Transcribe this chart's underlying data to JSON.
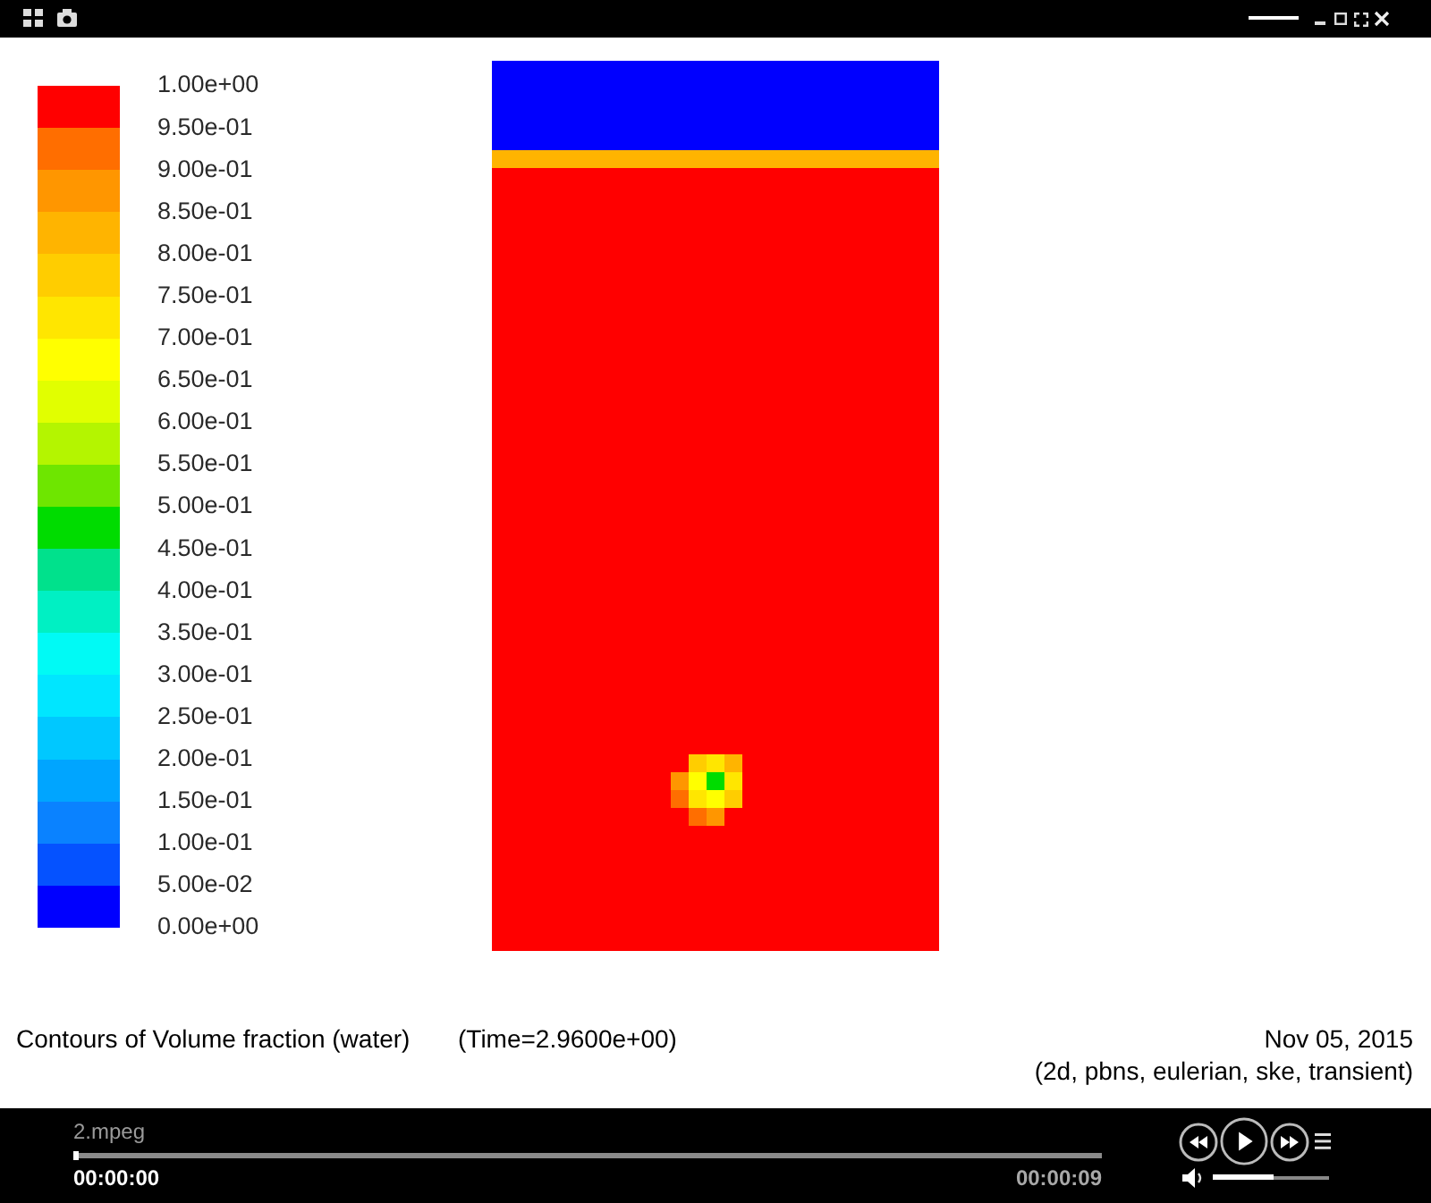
{
  "chart_data": {
    "type": "heatmap",
    "title": "Contours of Volume fraction (water)",
    "subtitle": "(Time=2.9600e+00)",
    "annotations": [
      "Nov 05, 2015",
      "(2d, pbns, eulerian, ske, transient)",
      "2.mpeg",
      "00:00:00",
      "00:00:09"
    ],
    "categories": [
      null,
      null,
      null,
      null,
      null,
      null,
      null,
      null,
      null,
      null,
      null,
      null,
      null,
      null,
      null,
      null,
      null,
      null,
      null,
      null,
      null,
      null,
      null,
      null,
      null
    ],
    "y_categories": [
      null,
      null,
      null,
      null,
      null,
      null,
      null,
      null,
      null,
      null,
      null,
      null,
      null,
      null,
      null,
      null,
      null,
      null,
      null,
      null,
      null,
      null,
      null,
      null,
      null,
      null,
      null,
      null,
      null,
      null,
      null,
      null,
      null,
      null,
      null,
      null,
      null,
      null,
      null,
      null,
      null,
      null,
      null,
      null,
      null,
      null,
      null,
      null,
      null,
      null
    ],
    "clim": [
      0,
      1
    ],
    "cticks": [
      {
        "value": 0,
        "label": "0.00e+00"
      },
      {
        "value": 0.05,
        "label": "5.00e-02"
      },
      {
        "value": 0.1,
        "label": "1.00e-01"
      },
      {
        "value": 0.15,
        "label": "1.50e-01"
      },
      {
        "value": 0.2,
        "label": "2.00e-01"
      },
      {
        "value": 0.25,
        "label": "2.50e-01"
      },
      {
        "value": 0.3,
        "label": "3.00e-01"
      },
      {
        "value": 0.35,
        "label": "3.50e-01"
      },
      {
        "value": 0.4,
        "label": "4.00e-01"
      },
      {
        "value": 0.45,
        "label": "4.50e-01"
      },
      {
        "value": 0.5,
        "label": "5.00e-01"
      },
      {
        "value": 0.55,
        "label": "5.50e-01"
      },
      {
        "value": 0.6,
        "label": "6.00e-01"
      },
      {
        "value": 0.65,
        "label": "6.50e-01"
      },
      {
        "value": 0.7,
        "label": "7.00e-01"
      },
      {
        "value": 0.75,
        "label": "7.50e-01"
      },
      {
        "value": 0.8,
        "label": "8.00e-01"
      },
      {
        "value": 0.85,
        "label": "8.50e-01"
      },
      {
        "value": 0.9,
        "label": "9.00e-01"
      },
      {
        "value": 0.95,
        "label": "9.50e-01"
      },
      {
        "value": 1,
        "label": "1.00e+00"
      }
    ],
    "cells": [
      [
        0,
        0,
        0,
        0,
        0,
        0,
        0,
        0,
        0,
        0,
        0,
        0,
        0,
        0,
        0,
        0,
        0,
        0,
        0,
        0,
        0,
        0,
        0,
        0,
        0
      ],
      [
        0,
        0,
        0,
        0,
        0,
        0,
        0,
        0,
        0,
        0,
        0,
        0,
        0,
        0,
        0,
        0,
        0,
        0,
        0,
        0,
        0,
        0,
        0,
        0,
        0
      ],
      [
        0,
        0,
        0,
        0,
        0,
        0,
        0,
        0,
        0,
        0,
        0,
        0,
        0,
        0,
        0,
        0,
        0,
        0,
        0,
        0,
        0,
        0,
        0,
        0,
        0
      ],
      [
        0,
        0,
        0,
        0,
        0,
        0,
        0,
        0,
        0,
        0,
        0,
        0,
        0,
        0,
        0,
        0,
        0,
        0,
        0,
        0,
        0,
        0,
        0,
        0,
        0
      ],
      [
        0,
        0,
        0,
        0,
        0,
        0,
        0,
        0,
        0,
        0,
        0,
        0,
        0,
        0,
        0,
        0,
        0,
        0,
        0,
        0,
        0,
        0,
        0,
        0,
        0
      ],
      [
        0.84,
        0.84,
        0.84,
        0.84,
        0.84,
        0.84,
        0.84,
        0.84,
        0.84,
        0.84,
        0.84,
        0.84,
        0.84,
        0.84,
        0.84,
        0.84,
        0.84,
        0.84,
        0.84,
        0.84,
        0.84,
        0.84,
        0.84,
        0.84,
        0.84
      ],
      [
        1,
        1,
        1,
        1,
        1,
        1,
        1,
        1,
        1,
        1,
        1,
        1,
        1,
        1,
        1,
        1,
        1,
        1,
        1,
        1,
        1,
        1,
        1,
        1,
        1
      ],
      [
        1,
        1,
        1,
        1,
        1,
        1,
        1,
        1,
        1,
        1,
        1,
        1,
        1,
        1,
        1,
        1,
        1,
        1,
        1,
        1,
        1,
        1,
        1,
        1,
        1
      ],
      [
        1,
        1,
        1,
        1,
        1,
        1,
        1,
        1,
        1,
        1,
        1,
        1,
        1,
        1,
        1,
        1,
        1,
        1,
        1,
        1,
        1,
        1,
        1,
        1,
        1
      ],
      [
        1,
        1,
        1,
        1,
        1,
        1,
        1,
        1,
        1,
        1,
        1,
        1,
        1,
        1,
        1,
        1,
        1,
        1,
        1,
        1,
        1,
        1,
        1,
        1,
        1
      ],
      [
        1,
        1,
        1,
        1,
        1,
        1,
        1,
        1,
        1,
        1,
        1,
        1,
        1,
        1,
        1,
        1,
        1,
        1,
        1,
        1,
        1,
        1,
        1,
        1,
        1
      ],
      [
        1,
        1,
        1,
        1,
        1,
        1,
        1,
        1,
        1,
        1,
        1,
        1,
        1,
        1,
        1,
        1,
        1,
        1,
        1,
        1,
        1,
        1,
        1,
        1,
        1
      ],
      [
        1,
        1,
        1,
        1,
        1,
        1,
        1,
        1,
        1,
        1,
        1,
        1,
        1,
        1,
        1,
        1,
        1,
        1,
        1,
        1,
        1,
        1,
        1,
        1,
        1
      ],
      [
        1,
        1,
        1,
        1,
        1,
        1,
        1,
        1,
        1,
        1,
        1,
        1,
        1,
        1,
        1,
        1,
        1,
        1,
        1,
        1,
        1,
        1,
        1,
        1,
        1
      ],
      [
        1,
        1,
        1,
        1,
        1,
        1,
        1,
        1,
        1,
        1,
        1,
        1,
        1,
        1,
        1,
        1,
        1,
        1,
        1,
        1,
        1,
        1,
        1,
        1,
        1
      ],
      [
        1,
        1,
        1,
        1,
        1,
        1,
        1,
        1,
        1,
        1,
        1,
        1,
        1,
        1,
        1,
        1,
        1,
        1,
        1,
        1,
        1,
        1,
        1,
        1,
        1
      ],
      [
        1,
        1,
        1,
        1,
        1,
        1,
        1,
        1,
        1,
        1,
        1,
        1,
        1,
        1,
        1,
        1,
        1,
        1,
        1,
        1,
        1,
        1,
        1,
        1,
        1
      ],
      [
        1,
        1,
        1,
        1,
        1,
        1,
        1,
        1,
        1,
        1,
        1,
        1,
        1,
        1,
        1,
        1,
        1,
        1,
        1,
        1,
        1,
        1,
        1,
        1,
        1
      ],
      [
        1,
        1,
        1,
        1,
        1,
        1,
        1,
        1,
        1,
        1,
        1,
        1,
        1,
        1,
        1,
        1,
        1,
        1,
        1,
        1,
        1,
        1,
        1,
        1,
        1
      ],
      [
        1,
        1,
        1,
        1,
        1,
        1,
        1,
        1,
        1,
        1,
        1,
        1,
        1,
        1,
        1,
        1,
        1,
        1,
        1,
        1,
        1,
        1,
        1,
        1,
        1
      ],
      [
        1,
        1,
        1,
        1,
        1,
        1,
        1,
        1,
        1,
        1,
        1,
        1,
        1,
        1,
        1,
        1,
        1,
        1,
        1,
        1,
        1,
        1,
        1,
        1,
        1
      ],
      [
        1,
        1,
        1,
        1,
        1,
        1,
        1,
        1,
        1,
        1,
        1,
        1,
        1,
        1,
        1,
        1,
        1,
        1,
        1,
        1,
        1,
        1,
        1,
        1,
        1
      ],
      [
        1,
        1,
        1,
        1,
        1,
        1,
        1,
        1,
        1,
        1,
        1,
        1,
        1,
        1,
        1,
        1,
        1,
        1,
        1,
        1,
        1,
        1,
        1,
        1,
        1
      ],
      [
        1,
        1,
        1,
        1,
        1,
        1,
        1,
        1,
        1,
        1,
        1,
        1,
        1,
        1,
        1,
        1,
        1,
        1,
        1,
        1,
        1,
        1,
        1,
        1,
        1
      ],
      [
        1,
        1,
        1,
        1,
        1,
        1,
        1,
        1,
        1,
        1,
        1,
        1,
        1,
        1,
        1,
        1,
        1,
        1,
        1,
        1,
        1,
        1,
        1,
        1,
        1
      ],
      [
        1,
        1,
        1,
        1,
        1,
        1,
        1,
        1,
        1,
        1,
        1,
        1,
        1,
        1,
        1,
        1,
        1,
        1,
        1,
        1,
        1,
        1,
        1,
        1,
        1
      ],
      [
        1,
        1,
        1,
        1,
        1,
        1,
        1,
        1,
        1,
        1,
        1,
        1,
        1,
        1,
        1,
        1,
        1,
        1,
        1,
        1,
        1,
        1,
        1,
        1,
        1
      ],
      [
        1,
        1,
        1,
        1,
        1,
        1,
        1,
        1,
        1,
        1,
        1,
        1,
        1,
        1,
        1,
        1,
        1,
        1,
        1,
        1,
        1,
        1,
        1,
        1,
        1
      ],
      [
        1,
        1,
        1,
        1,
        1,
        1,
        1,
        1,
        1,
        1,
        1,
        1,
        1,
        1,
        1,
        1,
        1,
        1,
        1,
        1,
        1,
        1,
        1,
        1,
        1
      ],
      [
        1,
        1,
        1,
        1,
        1,
        1,
        1,
        1,
        1,
        1,
        1,
        1,
        1,
        1,
        1,
        1,
        1,
        1,
        1,
        1,
        1,
        1,
        1,
        1,
        1
      ],
      [
        1,
        1,
        1,
        1,
        1,
        1,
        1,
        1,
        1,
        1,
        1,
        1,
        1,
        1,
        1,
        1,
        1,
        1,
        1,
        1,
        1,
        1,
        1,
        1,
        1
      ],
      [
        1,
        1,
        1,
        1,
        1,
        1,
        1,
        1,
        1,
        1,
        1,
        1,
        1,
        1,
        1,
        1,
        1,
        1,
        1,
        1,
        1,
        1,
        1,
        1,
        1
      ],
      [
        1,
        1,
        1,
        1,
        1,
        1,
        1,
        1,
        1,
        1,
        1,
        1,
        1,
        1,
        1,
        1,
        1,
        1,
        1,
        1,
        1,
        1,
        1,
        1,
        1
      ],
      [
        1,
        1,
        1,
        1,
        1,
        1,
        1,
        1,
        1,
        1,
        1,
        1,
        1,
        1,
        1,
        1,
        1,
        1,
        1,
        1,
        1,
        1,
        1,
        1,
        1
      ],
      [
        1,
        1,
        1,
        1,
        1,
        1,
        1,
        1,
        1,
        1,
        1,
        1,
        1,
        1,
        1,
        1,
        1,
        1,
        1,
        1,
        1,
        1,
        1,
        1,
        1
      ],
      [
        1,
        1,
        1,
        1,
        1,
        1,
        1,
        1,
        1,
        1,
        1,
        1,
        1,
        1,
        1,
        1,
        1,
        1,
        1,
        1,
        1,
        1,
        1,
        1,
        1
      ],
      [
        1,
        1,
        1,
        1,
        1,
        1,
        1,
        1,
        1,
        1,
        1,
        1,
        1,
        1,
        1,
        1,
        1,
        1,
        1,
        1,
        1,
        1,
        1,
        1,
        1
      ],
      [
        1,
        1,
        1,
        1,
        1,
        1,
        1,
        1,
        1,
        1,
        1,
        1,
        1,
        1,
        1,
        1,
        1,
        1,
        1,
        1,
        1,
        1,
        1,
        1,
        1
      ],
      [
        1,
        1,
        1,
        1,
        1,
        1,
        1,
        1,
        1,
        1,
        1,
        1,
        1,
        1,
        1,
        1,
        1,
        1,
        1,
        1,
        1,
        1,
        1,
        1,
        1
      ],
      [
        1,
        1,
        1,
        1,
        1,
        1,
        1,
        1,
        1,
        1,
        1,
        0.78,
        0.72,
        0.83,
        1,
        1,
        1,
        1,
        1,
        1,
        1,
        1,
        1,
        1,
        1
      ],
      [
        1,
        1,
        1,
        1,
        1,
        1,
        1,
        1,
        1,
        1,
        0.88,
        0.68,
        0.47,
        0.72,
        1,
        1,
        1,
        1,
        1,
        1,
        1,
        1,
        1,
        1,
        1
      ],
      [
        1,
        1,
        1,
        1,
        1,
        1,
        1,
        1,
        1,
        1,
        0.92,
        0.72,
        0.68,
        0.78,
        1,
        1,
        1,
        1,
        1,
        1,
        1,
        1,
        1,
        1,
        1
      ],
      [
        1,
        1,
        1,
        1,
        1,
        1,
        1,
        1,
        1,
        1,
        1,
        0.92,
        0.88,
        1,
        1,
        1,
        1,
        1,
        1,
        1,
        1,
        1,
        1,
        1,
        1
      ],
      [
        1,
        1,
        1,
        1,
        1,
        1,
        1,
        1,
        1,
        1,
        1,
        1,
        1,
        1,
        1,
        1,
        1,
        1,
        1,
        1,
        1,
        1,
        1,
        1,
        1
      ],
      [
        1,
        1,
        1,
        1,
        1,
        1,
        1,
        1,
        1,
        1,
        1,
        1,
        1,
        1,
        1,
        1,
        1,
        1,
        1,
        1,
        1,
        1,
        1,
        1,
        1
      ],
      [
        1,
        1,
        1,
        1,
        1,
        1,
        1,
        1,
        1,
        1,
        1,
        1,
        1,
        1,
        1,
        1,
        1,
        1,
        1,
        1,
        1,
        1,
        1,
        1,
        1
      ],
      [
        1,
        1,
        1,
        1,
        1,
        1,
        1,
        1,
        1,
        1,
        1,
        1,
        1,
        1,
        1,
        1,
        1,
        1,
        1,
        1,
        1,
        1,
        1,
        1,
        1
      ],
      [
        1,
        1,
        1,
        1,
        1,
        1,
        1,
        1,
        1,
        1,
        1,
        1,
        1,
        1,
        1,
        1,
        1,
        1,
        1,
        1,
        1,
        1,
        1,
        1,
        1
      ],
      [
        1,
        1,
        1,
        1,
        1,
        1,
        1,
        1,
        1,
        1,
        1,
        1,
        1,
        1,
        1,
        1,
        1,
        1,
        1,
        1,
        1,
        1,
        1,
        1,
        1
      ],
      [
        1,
        1,
        1,
        1,
        1,
        1,
        1,
        1,
        1,
        1,
        1,
        1,
        1,
        1,
        1,
        1,
        1,
        1,
        1,
        1,
        1,
        1,
        1,
        1,
        1
      ]
    ]
  }
}
